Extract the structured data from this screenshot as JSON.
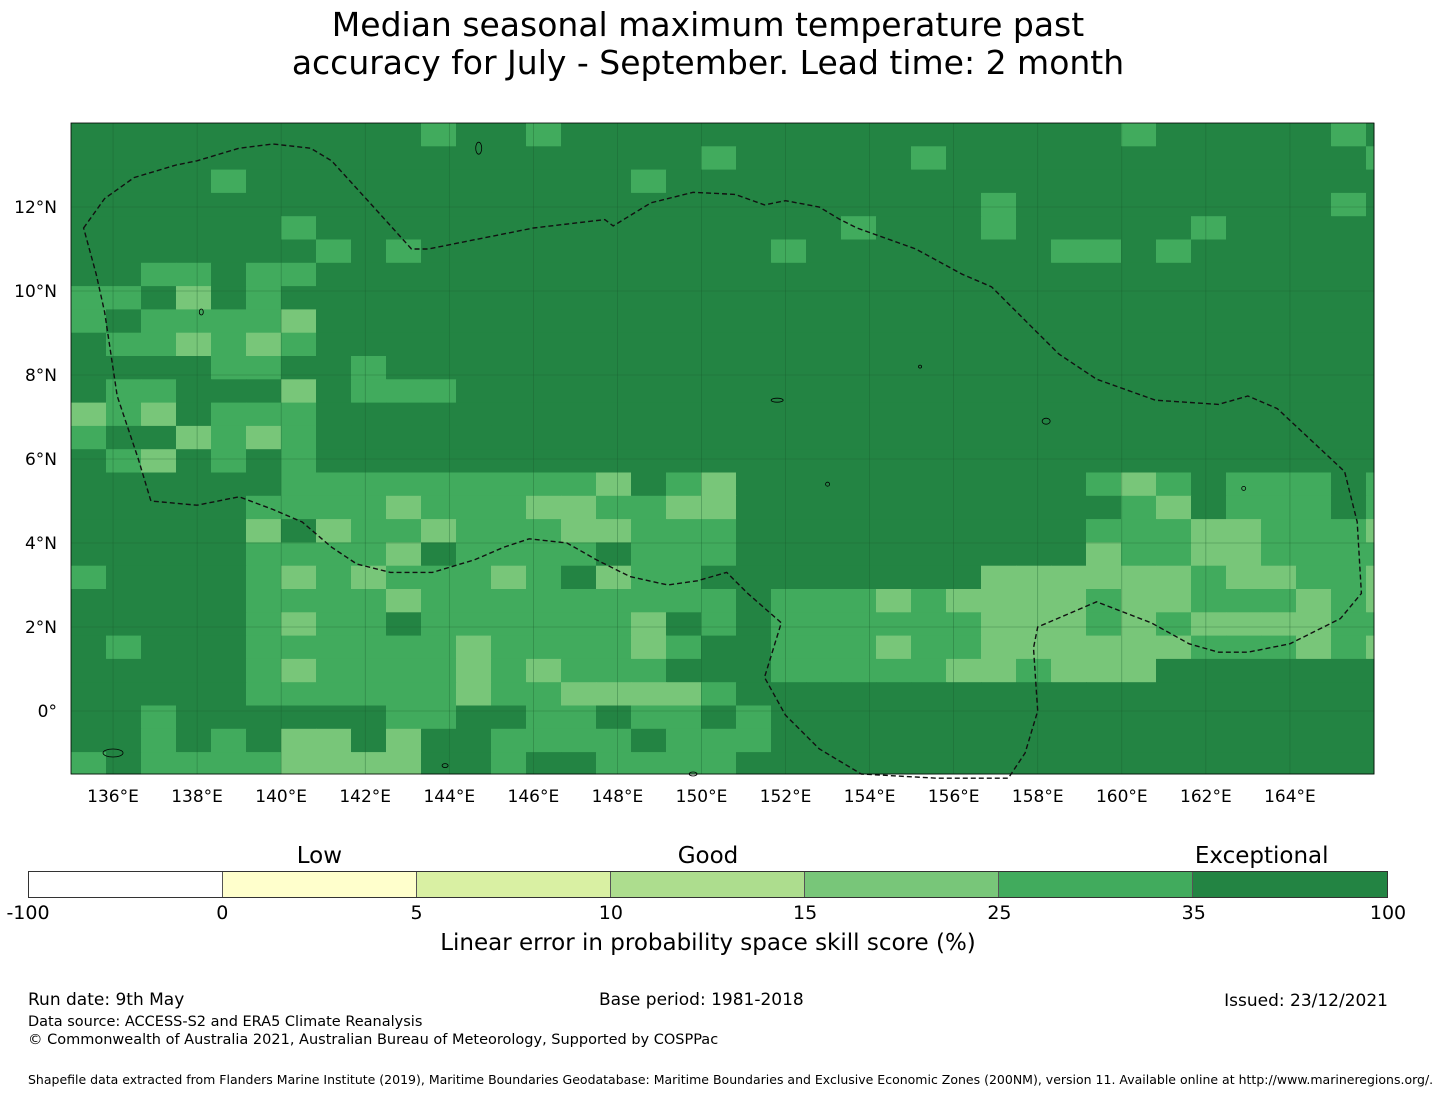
{
  "title": {
    "line1": "Median seasonal maximum temperature past",
    "line2": "accuracy for July - September. Lead time: 2 month"
  },
  "map": {
    "lon_ticks": [
      "136°E",
      "138°E",
      "140°E",
      "142°E",
      "144°E",
      "146°E",
      "148°E",
      "150°E",
      "152°E",
      "154°E",
      "156°E",
      "158°E",
      "160°E",
      "162°E",
      "164°E"
    ],
    "lat_ticks": [
      "12°N",
      "10°N",
      "8°N",
      "6°N",
      "4°N",
      "2°N",
      "0°"
    ],
    "lon_range": [
      135.0,
      166.0
    ],
    "lat_range": [
      -1.5,
      14.0
    ],
    "cell_size_deg": 0.83,
    "skill_class_colors": [
      "#ffffff",
      "#ffffcc",
      "#d9f0a3",
      "#addd8e",
      "#78c679",
      "#41ab5d",
      "#238443"
    ],
    "gridlines": true,
    "eez_boundary": [
      [
        135.3,
        11.5
      ],
      [
        135.8,
        12.2
      ],
      [
        136.5,
        12.7
      ],
      [
        137.5,
        13.0
      ],
      [
        138.0,
        13.1
      ],
      [
        139.0,
        13.4
      ],
      [
        139.8,
        13.5
      ],
      [
        140.7,
        13.4
      ],
      [
        141.2,
        13.1
      ],
      [
        142.2,
        12.0
      ],
      [
        143.1,
        11.0
      ],
      [
        143.5,
        11.0
      ],
      [
        144.5,
        11.2
      ],
      [
        146.0,
        11.5
      ],
      [
        147.7,
        11.7
      ],
      [
        147.9,
        11.55
      ],
      [
        148.8,
        12.1
      ],
      [
        149.8,
        12.35
      ],
      [
        150.8,
        12.3
      ],
      [
        151.5,
        12.05
      ],
      [
        152.0,
        12.15
      ],
      [
        152.8,
        12.0
      ],
      [
        153.3,
        11.7
      ],
      [
        153.7,
        11.5
      ],
      [
        155.1,
        11.0
      ],
      [
        156.2,
        10.4
      ],
      [
        156.9,
        10.1
      ],
      [
        157.5,
        9.5
      ],
      [
        158.5,
        8.5
      ],
      [
        159.4,
        7.9
      ],
      [
        160.8,
        7.4
      ],
      [
        162.3,
        7.3
      ],
      [
        163.0,
        7.5
      ],
      [
        163.7,
        7.2
      ],
      [
        165.3,
        5.7
      ],
      [
        165.6,
        4.5
      ],
      [
        165.7,
        2.8
      ],
      [
        165.2,
        2.2
      ],
      [
        164.0,
        1.6
      ],
      [
        163.0,
        1.4
      ],
      [
        162.3,
        1.4
      ],
      [
        161.6,
        1.6
      ],
      [
        160.7,
        2.1
      ],
      [
        159.4,
        2.6
      ],
      [
        158.0,
        2.0
      ],
      [
        157.9,
        1.5
      ],
      [
        158.0,
        0.0
      ],
      [
        157.7,
        -1.0
      ],
      [
        157.3,
        -1.6
      ],
      [
        155.6,
        -1.6
      ],
      [
        153.8,
        -1.5
      ],
      [
        152.8,
        -0.9
      ],
      [
        152.0,
        -0.1
      ],
      [
        151.5,
        0.8
      ],
      [
        151.9,
        2.1
      ],
      [
        151.1,
        2.8
      ],
      [
        150.6,
        3.3
      ],
      [
        149.9,
        3.1
      ],
      [
        149.2,
        3.0
      ],
      [
        148.3,
        3.2
      ],
      [
        147.5,
        3.6
      ],
      [
        146.8,
        4.0
      ],
      [
        145.9,
        4.1
      ],
      [
        145.3,
        3.9
      ],
      [
        144.6,
        3.6
      ],
      [
        143.6,
        3.3
      ],
      [
        142.6,
        3.3
      ],
      [
        141.8,
        3.5
      ],
      [
        141.2,
        3.9
      ],
      [
        140.5,
        4.5
      ],
      [
        139.8,
        4.8
      ],
      [
        139.0,
        5.1
      ],
      [
        138.0,
        4.9
      ],
      [
        136.9,
        5.0
      ],
      [
        136.6,
        6.0
      ],
      [
        136.1,
        7.5
      ],
      [
        135.8,
        9.5
      ],
      [
        135.6,
        10.4
      ],
      [
        135.3,
        11.5
      ]
    ]
  },
  "colorbar": {
    "categories": [
      {
        "label": "Low",
        "at": 1.5
      },
      {
        "label": "Good",
        "at": 3.5
      },
      {
        "label": "Exceptional",
        "at": 6.35
      }
    ],
    "ticks": [
      "-100",
      "0",
      "5",
      "10",
      "15",
      "25",
      "35",
      "100"
    ],
    "colors": [
      "#ffffff",
      "#ffffcc",
      "#d9f0a3",
      "#addd8e",
      "#78c679",
      "#41ab5d",
      "#238443"
    ],
    "label": "Linear error in probability space skill score (%)"
  },
  "footer": {
    "run_date": "Run date: 9th May",
    "base_period": "Base period: 1981-2018",
    "issued": "Issued: 23/12/2021",
    "data_source": "Data source: ACCESS-S2 and ERA5 Climate Reanalysis",
    "copyright": "© Commonwealth of Australia 2021, Australian Bureau of Meteorology, Supported by COSPPac",
    "shapefile": "Shapefile data extracted from Flanders Marine Institute (2019), Maritime Boundaries Geodatabase: Maritime Boundaries and Exclusive Economic Zones (200NM), version 11. Available online at http://www.marineregions.org/."
  }
}
